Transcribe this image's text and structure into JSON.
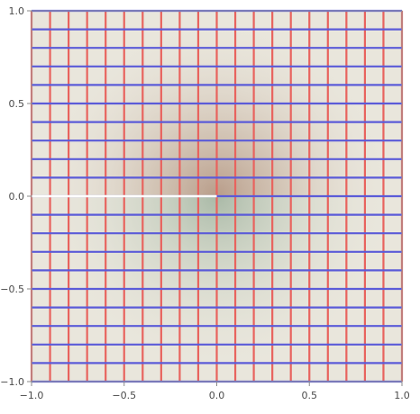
{
  "chart_data": {
    "type": "heatmap",
    "title": "",
    "xlabel": "",
    "ylabel": "",
    "xlim": [
      -1.0,
      1.0
    ],
    "ylim": [
      -1.0,
      1.0
    ],
    "x_ticks": [
      -1.0,
      -0.5,
      0.0,
      0.5,
      1.0
    ],
    "y_ticks": [
      -1.0,
      -0.5,
      0.0,
      0.5,
      1.0
    ],
    "x_tick_labels": [
      "−1.0",
      "−0.5",
      "0.0",
      "0.5",
      "1.0"
    ],
    "y_tick_labels": [
      "−1.0",
      "−0.5",
      "0.0",
      "0.5",
      "1.0"
    ],
    "grid_line_values": [
      -1.0,
      -0.9,
      -0.8,
      -0.7,
      -0.6,
      -0.5,
      -0.4,
      -0.3,
      -0.2,
      -0.1,
      0.0,
      0.1,
      0.2,
      0.3,
      0.4,
      0.5,
      0.6,
      0.7,
      0.8,
      0.9,
      1.0
    ],
    "series": [
      {
        "orientation": "vertical",
        "x": [
          -1.0,
          -0.9,
          -0.8,
          -0.7,
          -0.6,
          -0.5,
          -0.4,
          -0.3,
          -0.2,
          -0.1,
          0.0,
          0.1,
          0.2,
          0.3,
          0.4,
          0.5,
          0.6,
          0.7,
          0.8,
          0.9,
          1.0
        ],
        "color": "#e8635e"
      },
      {
        "orientation": "horizontal",
        "y": [
          -1.0,
          -0.9,
          -0.8,
          -0.7,
          -0.6,
          -0.5,
          -0.4,
          -0.3,
          -0.2,
          -0.1,
          0.0,
          0.1,
          0.2,
          0.3,
          0.4,
          0.5,
          0.6,
          0.7,
          0.8,
          0.9,
          1.0
        ],
        "color": "#5b5bd8"
      }
    ],
    "branch_cut": {
      "from": [
        -1.0,
        0.0
      ],
      "to": [
        0.0,
        0.0
      ],
      "color": "#ffffff"
    },
    "background_colors": {
      "base": "#e9e6dc",
      "center_upper": "#a8846e",
      "center_lower": "#8ea690"
    },
    "grid": true,
    "legend": "none"
  }
}
